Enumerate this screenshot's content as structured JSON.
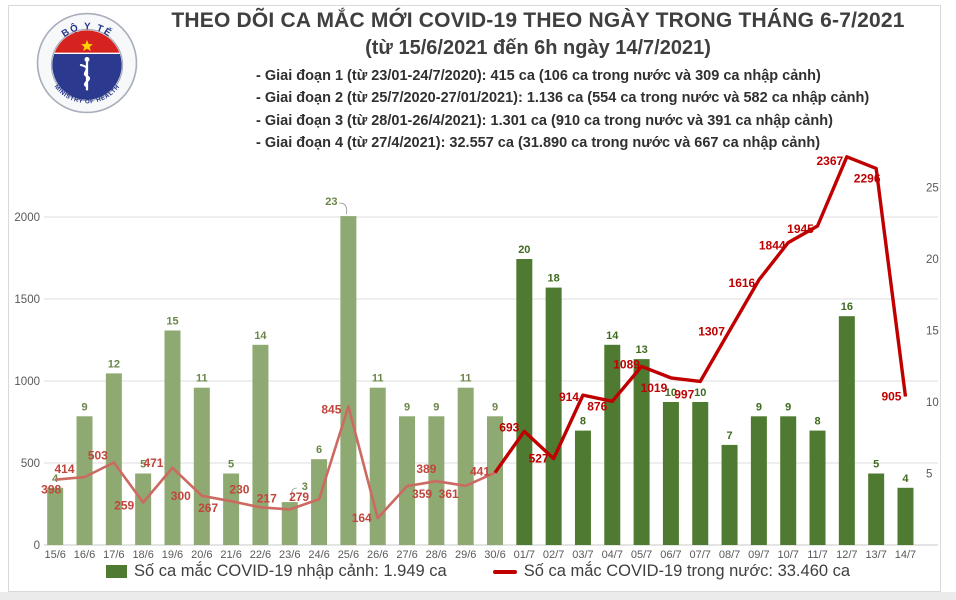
{
  "header": {
    "title": "THEO DÕI CA MẮC MỚI COVID-19 THEO NGÀY TRONG THÁNG 6-7/2021",
    "subtitle": "(từ 15/6/2021 đến 6h ngày 14/7/2021)",
    "phases": [
      "- Giai đoạn 1 (từ 23/01-24/7/2020): 415 ca (106 ca trong nước và 309 ca nhập cảnh)",
      "- Giai đoạn 2 (từ 25/7/2020-27/01/2021): 1.136 ca (554 ca trong nước và 582 ca nhập cảnh)",
      "- Giai đoạn 3 (từ 28/01-26/4/2021): 1.301 ca (910 ca trong nước và 391 ca nhập cảnh)",
      "- Giai đoạn 4 (từ 27/4/2021): 32.557 ca (31.890 ca trong nước và 667 ca nhập cảnh)"
    ]
  },
  "logo": {
    "top_text": "BỘ Y TẾ",
    "bottom_text": "MINISTRY OF HEALTH"
  },
  "legend": {
    "bars_label": "Số ca mắc COVID-19 nhập cảnh: 1.949 ca",
    "line_label": "Số ca mắc COVID-19 trong nước: 33.460 ca"
  },
  "chart_data": {
    "type": "bar+line combo",
    "categories": [
      "15/6",
      "16/6",
      "17/6",
      "18/6",
      "19/6",
      "20/6",
      "21/6",
      "22/6",
      "23/6",
      "24/6",
      "25/6",
      "26/6",
      "27/6",
      "28/6",
      "29/6",
      "30/6",
      "01/7",
      "02/7",
      "03/7",
      "04/7",
      "05/7",
      "06/7",
      "07/7",
      "08/7",
      "09/7",
      "10/7",
      "11/7",
      "12/7",
      "13/7",
      "14/7"
    ],
    "series": [
      {
        "name": "Số ca mắc COVID-19 nhập cảnh",
        "type": "bar",
        "axis": "right",
        "values": [
          4,
          9,
          12,
          5,
          15,
          11,
          5,
          14,
          3,
          6,
          23,
          11,
          9,
          9,
          11,
          9,
          20,
          18,
          8,
          14,
          13,
          10,
          10,
          7,
          9,
          9,
          8,
          16,
          5,
          4
        ]
      },
      {
        "name": "Số ca mắc COVID-19 trong nước",
        "type": "line",
        "axis": "left",
        "values": [
          398,
          414,
          503,
          259,
          471,
          300,
          267,
          230,
          217,
          279,
          845,
          164,
          359,
          389,
          361,
          441,
          693,
          527,
          914,
          876,
          1089,
          1019,
          997,
          1307,
          1616,
          1844,
          1945,
          2367,
          2296,
          905
        ]
      }
    ],
    "left_axis": {
      "ticks": [
        0,
        500,
        1000,
        1500,
        2000
      ],
      "range": [
        0,
        2500
      ]
    },
    "right_axis": {
      "ticks": [
        5,
        10,
        15,
        20,
        25
      ],
      "range": [
        0,
        28
      ]
    },
    "grid": "horizontal",
    "legend_position": "bottom",
    "june_point_count": 16,
    "colors": {
      "bar_june": "#8EA972",
      "bar_july": "#4E7B31",
      "bar_label_june": "#6A8648",
      "bar_label_july": "#3F6A1F",
      "line_june": "#CC6A62",
      "line_july": "#C00000",
      "line_label_june": "#C2453C",
      "line_label_july": "#C00000",
      "axis_text": "#595959",
      "grid_line": "#DCDCDC"
    }
  }
}
